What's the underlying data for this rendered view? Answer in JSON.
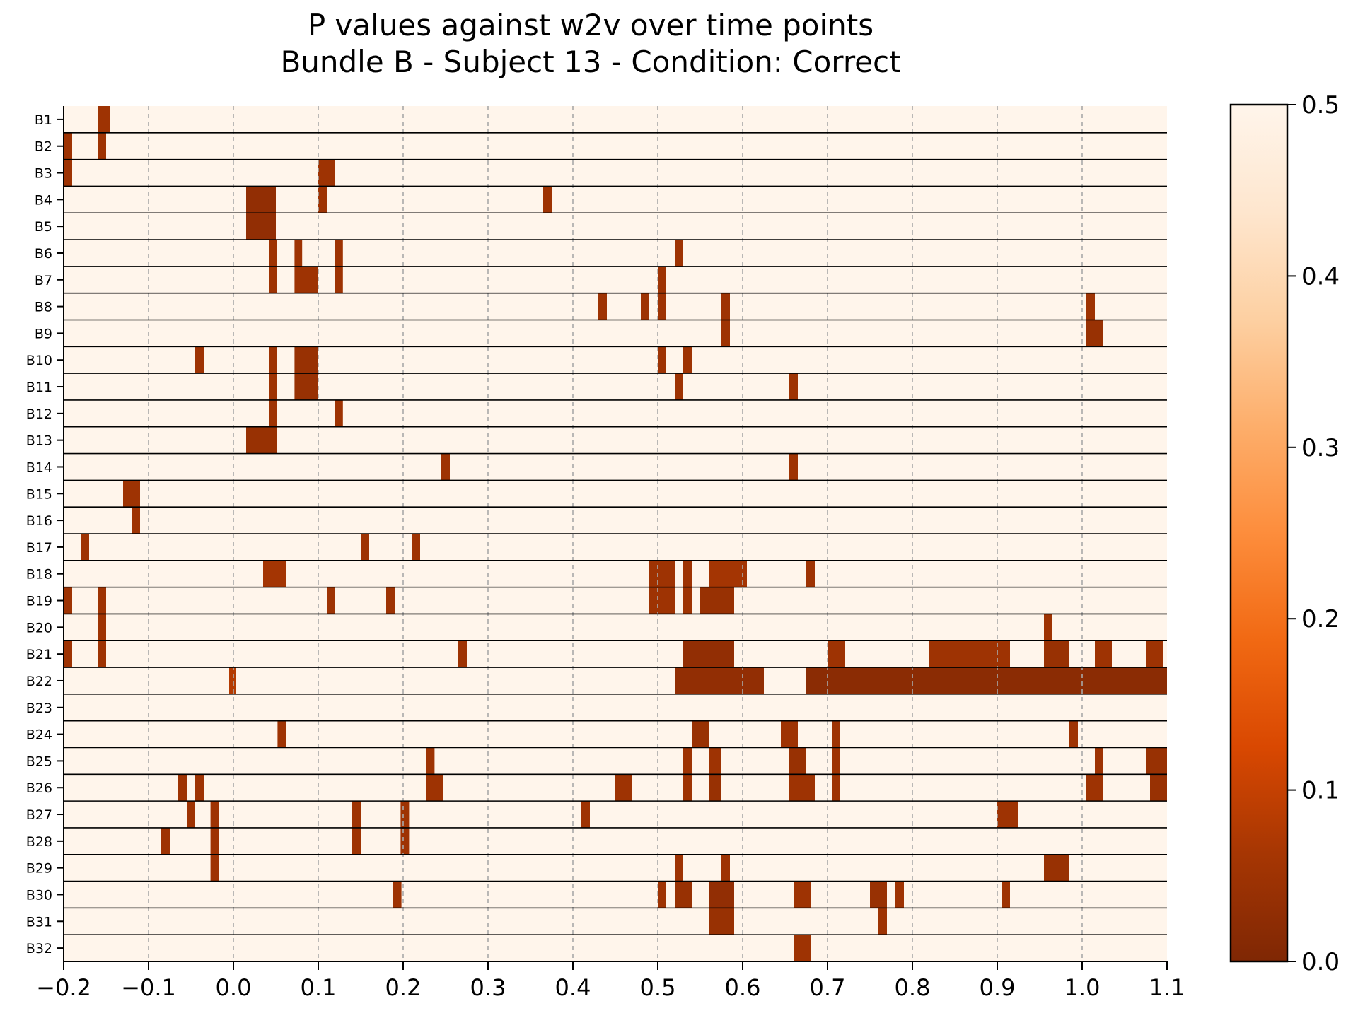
{
  "chart_data": {
    "type": "heatmap",
    "title": "P values against w2v over time points",
    "subtitle": "Bundle B - Subject 13 - Condition: Correct",
    "xlabel": "",
    "ylabel": "",
    "xlim": [
      -0.2,
      1.1
    ],
    "x_ticks": [
      "−0.2",
      "−0.1",
      "0.0",
      "0.1",
      "0.2",
      "0.3",
      "0.4",
      "0.5",
      "0.6",
      "0.7",
      "0.8",
      "0.9",
      "1.0",
      "1.1"
    ],
    "x_tick_values": [
      -0.2,
      -0.1,
      0.0,
      0.1,
      0.2,
      0.3,
      0.4,
      0.5,
      0.6,
      0.7,
      0.8,
      0.9,
      1.0,
      1.1
    ],
    "grid": "vertical dashed at x ticks",
    "colormap": {
      "name": "Oranges reversed",
      "range": [
        0.0,
        0.5
      ],
      "ticks": [
        "0.0",
        "0.1",
        "0.2",
        "0.3",
        "0.4",
        "0.5"
      ],
      "tick_values": [
        0.0,
        0.1,
        0.2,
        0.3,
        0.4,
        0.5
      ],
      "stops": [
        "#7f2704",
        "#a63603",
        "#d94801",
        "#f16913",
        "#fd8d3c",
        "#fdae6b",
        "#fdd0a2",
        "#fee6ce",
        "#fff5eb"
      ]
    },
    "background_value": 0.5,
    "rows": [
      {
        "label": "B1",
        "cells": [
          [
            -0.16,
            -0.145,
            0.05
          ]
        ]
      },
      {
        "label": "B2",
        "cells": [
          [
            -0.2,
            -0.19,
            0.05
          ],
          [
            -0.16,
            -0.15,
            0.05
          ]
        ]
      },
      {
        "label": "B3",
        "cells": [
          [
            -0.2,
            -0.19,
            0.05
          ],
          [
            0.1,
            0.12,
            0.05
          ]
        ]
      },
      {
        "label": "B4",
        "cells": [
          [
            0.015,
            0.05,
            0.03
          ],
          [
            0.1,
            0.11,
            0.05
          ],
          [
            0.365,
            0.375,
            0.05
          ]
        ]
      },
      {
        "label": "B5",
        "cells": [
          [
            0.015,
            0.05,
            0.03
          ]
        ]
      },
      {
        "label": "B6",
        "cells": [
          [
            0.042,
            0.051,
            0.05
          ],
          [
            0.072,
            0.081,
            0.05
          ],
          [
            0.12,
            0.129,
            0.05
          ],
          [
            0.52,
            0.53,
            0.05
          ]
        ]
      },
      {
        "label": "B7",
        "cells": [
          [
            0.042,
            0.051,
            0.05
          ],
          [
            0.072,
            0.1,
            0.05
          ],
          [
            0.12,
            0.129,
            0.05
          ],
          [
            0.5,
            0.51,
            0.05
          ]
        ]
      },
      {
        "label": "B8",
        "cells": [
          [
            0.43,
            0.44,
            0.05
          ],
          [
            0.48,
            0.49,
            0.05
          ],
          [
            0.5,
            0.51,
            0.05
          ],
          [
            0.575,
            0.585,
            0.05
          ],
          [
            1.005,
            1.015,
            0.05
          ]
        ]
      },
      {
        "label": "B9",
        "cells": [
          [
            0.575,
            0.585,
            0.05
          ],
          [
            1.005,
            1.025,
            0.04
          ]
        ]
      },
      {
        "label": "B10",
        "cells": [
          [
            -0.045,
            -0.035,
            0.05
          ],
          [
            0.042,
            0.051,
            0.05
          ],
          [
            0.072,
            0.1,
            0.04
          ],
          [
            0.5,
            0.51,
            0.05
          ],
          [
            0.53,
            0.54,
            0.05
          ]
        ]
      },
      {
        "label": "B11",
        "cells": [
          [
            0.042,
            0.051,
            0.05
          ],
          [
            0.072,
            0.1,
            0.04
          ],
          [
            0.52,
            0.53,
            0.05
          ],
          [
            0.655,
            0.665,
            0.05
          ]
        ]
      },
      {
        "label": "B12",
        "cells": [
          [
            0.042,
            0.051,
            0.05
          ],
          [
            0.12,
            0.129,
            0.05
          ]
        ]
      },
      {
        "label": "B13",
        "cells": [
          [
            0.015,
            0.051,
            0.04
          ]
        ]
      },
      {
        "label": "B14",
        "cells": [
          [
            0.245,
            0.255,
            0.05
          ],
          [
            0.655,
            0.665,
            0.05
          ]
        ]
      },
      {
        "label": "B15",
        "cells": [
          [
            -0.13,
            -0.11,
            0.05
          ]
        ]
      },
      {
        "label": "B16",
        "cells": [
          [
            -0.12,
            -0.11,
            0.05
          ]
        ]
      },
      {
        "label": "B17",
        "cells": [
          [
            -0.18,
            -0.17,
            0.05
          ],
          [
            0.15,
            0.16,
            0.05
          ],
          [
            0.21,
            0.22,
            0.05
          ]
        ]
      },
      {
        "label": "B18",
        "cells": [
          [
            0.035,
            0.062,
            0.06
          ],
          [
            0.49,
            0.52,
            0.05
          ],
          [
            0.53,
            0.54,
            0.05
          ],
          [
            0.56,
            0.605,
            0.06
          ],
          [
            0.675,
            0.685,
            0.05
          ]
        ]
      },
      {
        "label": "B19",
        "cells": [
          [
            -0.2,
            -0.19,
            0.05
          ],
          [
            -0.16,
            -0.15,
            0.05
          ],
          [
            0.11,
            0.12,
            0.05
          ],
          [
            0.18,
            0.19,
            0.05
          ],
          [
            0.49,
            0.52,
            0.05
          ],
          [
            0.53,
            0.54,
            0.05
          ],
          [
            0.55,
            0.59,
            0.04
          ]
        ]
      },
      {
        "label": "B20",
        "cells": [
          [
            -0.16,
            -0.15,
            0.05
          ],
          [
            0.955,
            0.965,
            0.05
          ]
        ]
      },
      {
        "label": "B21",
        "cells": [
          [
            -0.2,
            -0.19,
            0.05
          ],
          [
            -0.16,
            -0.15,
            0.05
          ],
          [
            0.265,
            0.275,
            0.05
          ],
          [
            0.53,
            0.59,
            0.03
          ],
          [
            0.7,
            0.72,
            0.05
          ],
          [
            0.82,
            0.915,
            0.05
          ],
          [
            0.955,
            0.985,
            0.04
          ],
          [
            1.015,
            1.035,
            0.05
          ],
          [
            1.075,
            1.095,
            0.05
          ]
        ]
      },
      {
        "label": "B22",
        "cells": [
          [
            -0.005,
            0.003,
            0.08
          ],
          [
            0.52,
            0.625,
            0.03
          ],
          [
            0.675,
            1.1,
            0.02
          ]
        ]
      },
      {
        "label": "B23",
        "cells": []
      },
      {
        "label": "B24",
        "cells": [
          [
            0.052,
            0.062,
            0.05
          ],
          [
            0.54,
            0.56,
            0.04
          ],
          [
            0.645,
            0.665,
            0.05
          ],
          [
            0.705,
            0.715,
            0.05
          ],
          [
            0.985,
            0.995,
            0.05
          ]
        ]
      },
      {
        "label": "B25",
        "cells": [
          [
            0.227,
            0.237,
            0.05
          ],
          [
            0.53,
            0.54,
            0.05
          ],
          [
            0.56,
            0.575,
            0.05
          ],
          [
            0.655,
            0.675,
            0.04
          ],
          [
            0.705,
            0.715,
            0.05
          ],
          [
            1.015,
            1.025,
            0.05
          ],
          [
            1.075,
            1.1,
            0.04
          ]
        ]
      },
      {
        "label": "B26",
        "cells": [
          [
            -0.065,
            -0.055,
            0.05
          ],
          [
            -0.045,
            -0.035,
            0.05
          ],
          [
            0.227,
            0.247,
            0.05
          ],
          [
            0.45,
            0.47,
            0.05
          ],
          [
            0.53,
            0.54,
            0.05
          ],
          [
            0.56,
            0.575,
            0.04
          ],
          [
            0.655,
            0.685,
            0.05
          ],
          [
            0.705,
            0.715,
            0.05
          ],
          [
            1.005,
            1.025,
            0.05
          ],
          [
            1.08,
            1.1,
            0.04
          ]
        ]
      },
      {
        "label": "B27",
        "cells": [
          [
            -0.055,
            -0.045,
            0.05
          ],
          [
            -0.027,
            -0.017,
            0.05
          ],
          [
            0.14,
            0.15,
            0.05
          ],
          [
            0.197,
            0.207,
            0.05
          ],
          [
            0.41,
            0.42,
            0.05
          ],
          [
            0.9,
            0.925,
            0.05
          ]
        ]
      },
      {
        "label": "B28",
        "cells": [
          [
            -0.085,
            -0.075,
            0.05
          ],
          [
            -0.027,
            -0.017,
            0.05
          ],
          [
            0.14,
            0.15,
            0.05
          ],
          [
            0.197,
            0.207,
            0.05
          ]
        ]
      },
      {
        "label": "B29",
        "cells": [
          [
            -0.027,
            -0.017,
            0.05
          ],
          [
            0.52,
            0.53,
            0.05
          ],
          [
            0.575,
            0.585,
            0.05
          ],
          [
            0.955,
            0.985,
            0.04
          ]
        ]
      },
      {
        "label": "B30",
        "cells": [
          [
            0.188,
            0.198,
            0.05
          ],
          [
            0.5,
            0.51,
            0.05
          ],
          [
            0.52,
            0.54,
            0.04
          ],
          [
            0.56,
            0.59,
            0.03
          ],
          [
            0.66,
            0.68,
            0.05
          ],
          [
            0.75,
            0.77,
            0.04
          ],
          [
            0.78,
            0.79,
            0.05
          ],
          [
            0.905,
            0.915,
            0.05
          ]
        ]
      },
      {
        "label": "B31",
        "cells": [
          [
            0.56,
            0.59,
            0.04
          ],
          [
            0.76,
            0.77,
            0.05
          ]
        ]
      },
      {
        "label": "B32",
        "cells": [
          [
            0.66,
            0.68,
            0.05
          ]
        ]
      }
    ]
  }
}
